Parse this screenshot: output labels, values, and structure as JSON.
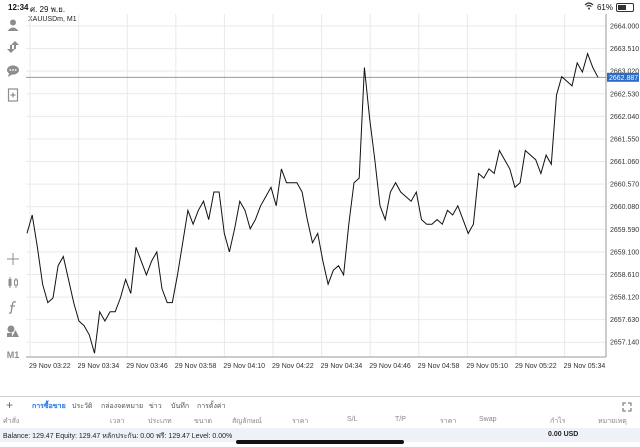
{
  "status": {
    "time": "12:34",
    "date": "ศ. 29 พ.ย.",
    "battery": "61%",
    "battery_level": 0.61
  },
  "symbol_title": "XAUUSDm, M1",
  "sidebar": {
    "bottom_label": "M1"
  },
  "chart_data": {
    "type": "line",
    "series": [
      {
        "values": [
          2659.5,
          2659.9,
          2659.2,
          2658.4,
          2658.0,
          2658.1,
          2658.8,
          2659.0,
          2658.5,
          2658.0,
          2657.6,
          2657.5,
          2657.3,
          2656.9,
          2657.8,
          2657.6,
          2657.8,
          2657.8,
          2658.1,
          2658.5,
          2658.2,
          2659.2,
          2658.9,
          2658.6,
          2658.9,
          2659.1,
          2658.3,
          2658.0,
          2658.0,
          2658.6,
          2659.3,
          2660.0,
          2659.7,
          2660.0,
          2660.2,
          2659.8,
          2660.4,
          2660.4,
          2659.5,
          2659.1,
          2659.6,
          2660.2,
          2660.0,
          2659.6,
          2659.8,
          2660.1,
          2660.3,
          2660.5,
          2660.1,
          2660.9,
          2660.6,
          2660.6,
          2660.6,
          2660.4,
          2659.8,
          2659.3,
          2659.5,
          2658.9,
          2658.4,
          2658.7,
          2658.8,
          2658.6,
          2659.7,
          2660.6,
          2660.7,
          2663.1,
          2662.0,
          2661.1,
          2660.1,
          2659.8,
          2660.4,
          2660.6,
          2660.4,
          2660.3,
          2660.2,
          2660.4,
          2659.8,
          2659.7,
          2659.7,
          2659.8,
          2659.7,
          2660.0,
          2659.9,
          2660.1,
          2659.8,
          2659.5,
          2659.7,
          2660.8,
          2660.7,
          2660.9,
          2660.8,
          2661.3,
          2661.1,
          2660.9,
          2660.5,
          2660.6,
          2661.3,
          2661.2,
          2661.1,
          2660.8,
          2661.2,
          2661.0,
          2662.5,
          2662.9,
          2662.8,
          2662.7,
          2663.2,
          2663.0,
          2663.4,
          2663.1,
          2662.887
        ]
      }
    ],
    "x_ticks": [
      "29 Nov 03:22",
      "29 Nov 03:34",
      "29 Nov 03:46",
      "29 Nov 03:58",
      "29 Nov 04:10",
      "29 Nov 04:22",
      "29 Nov 04:34",
      "29 Nov 04:46",
      "29 Nov 04:58",
      "29 Nov 05:10",
      "29 Nov 05:22",
      "29 Nov 05:34"
    ],
    "y_ticks": [
      "2664.000",
      "2663.510",
      "2663.020",
      "2662.530",
      "2662.040",
      "2661.550",
      "2661.060",
      "2660.570",
      "2660.080",
      "2659.590",
      "2659.100",
      "2658.610",
      "2658.120",
      "2657.630",
      "2657.140"
    ],
    "ylim": [
      2656.82,
      2664.26
    ],
    "current_price": "2662.887",
    "current_value": 2662.887,
    "grid": true
  },
  "tabs": [
    "การซื้อขาย",
    "ประวัติ",
    "กล่องจดหมาย",
    "ข่าว",
    "บันทึก",
    "การตั้งค่า"
  ],
  "columns": [
    "คำสั่ง",
    "เวลา",
    "ประเภท",
    "ขนาด",
    "สัญลักษณ์",
    "ราคา",
    "S/L",
    "T/P",
    "ราคา",
    "Swap",
    "กำไร",
    "หมายเหตุ"
  ],
  "balance": {
    "text": "Balance: 129.47 Equity: 129.47 หลักประกัน: 0.00 ฟรี: 129.47 Level: 0.00%",
    "profit": "0.00 USD"
  }
}
